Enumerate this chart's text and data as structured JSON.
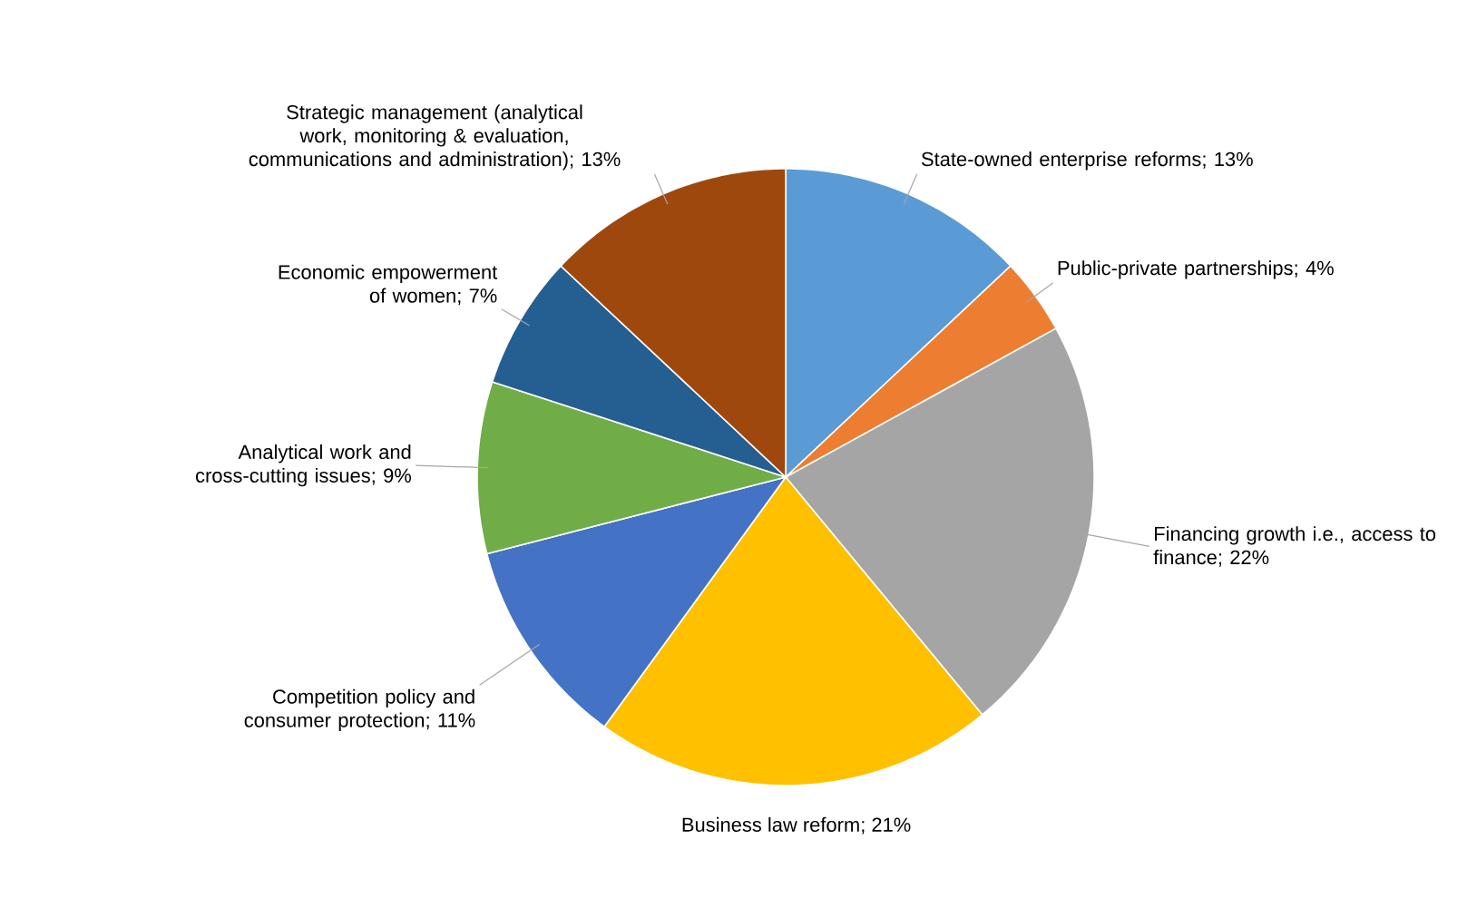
{
  "chart_data": {
    "type": "pie",
    "categories": [
      "State-owned enterprise reforms",
      "Public-private partnerships",
      "Financing growth i.e., access to finance",
      "Business law reform",
      "Competition policy and consumer protection",
      "Analytical work and cross-cutting issues",
      "Economic empowerment of women",
      "Strategic management (analytical work, monitoring & evaluation, communications and administration)"
    ],
    "values": [
      13,
      4,
      22,
      21,
      11,
      9,
      7,
      13
    ],
    "value_labels": [
      "; 13%",
      "; 4%",
      "; 22%",
      "; 21%",
      "; 11%",
      "; 9%",
      "; 7%",
      "; 13%"
    ],
    "colors": [
      "#5b9bd5",
      "#ed7d31",
      "#a5a5a5",
      "#ffc000",
      "#4472c4",
      "#70ad47",
      "#255e91",
      "#9e480e"
    ]
  }
}
